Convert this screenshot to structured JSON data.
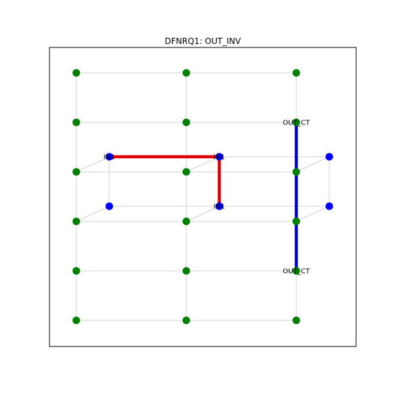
{
  "title": "DFNRQ1: OUT_INV",
  "colors": {
    "grid_edge": "#d0d0d0",
    "node_green": "#008000",
    "node_blue": "#0000ff",
    "route_red": "#e00000",
    "route_blue": "#0000cc",
    "frame": "#000000"
  },
  "grid": {
    "cols": [
      0,
      1,
      2
    ],
    "rows": [
      0,
      1,
      2,
      3,
      4,
      5
    ],
    "node_color": "green"
  },
  "back_layer": {
    "nodes": [
      {
        "id": "b1",
        "pos": [
          0,
          2
        ],
        "label": "IN1"
      },
      {
        "id": "b2",
        "pos": [
          1,
          2
        ],
        "label": "IN1"
      },
      {
        "id": "b3",
        "pos": [
          2,
          2
        ],
        "label": ""
      },
      {
        "id": "b4",
        "pos": [
          0,
          3
        ],
        "label": ""
      },
      {
        "id": "b5",
        "pos": [
          1,
          3
        ],
        "label": "IN1"
      },
      {
        "id": "b6",
        "pos": [
          2,
          3
        ],
        "label": ""
      }
    ],
    "node_color": "blue"
  },
  "front_labels": [
    {
      "pos": [
        2,
        1
      ],
      "label": "OUT_CT"
    },
    {
      "pos": [
        2,
        4
      ],
      "label": "OUT_CT"
    }
  ],
  "routes": [
    {
      "name": "IN1",
      "color": "red",
      "layer": "back",
      "path": [
        [
          0,
          2
        ],
        [
          1,
          2
        ],
        [
          1,
          3
        ]
      ]
    },
    {
      "name": "OUT_CT",
      "color": "blue",
      "layer": "front",
      "path": [
        [
          2,
          1
        ],
        [
          2,
          4
        ]
      ]
    }
  ]
}
